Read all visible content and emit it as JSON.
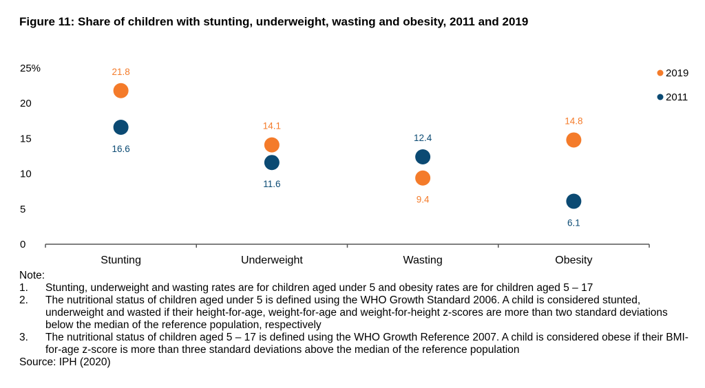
{
  "title": "Figure 11: Share of children with stunting, underweight, wasting and obesity, 2011 and 2019",
  "colors": {
    "series_2019": "#F47B2A",
    "series_2011": "#0B4A73",
    "axis": "#555555"
  },
  "chart_data": {
    "type": "scatter",
    "categories": [
      "Stunting",
      "Underweight",
      "Wasting",
      "Obesity"
    ],
    "series": [
      {
        "name": "2019",
        "values": [
          21.8,
          14.1,
          9.4,
          14.8
        ],
        "labels": [
          "21.8",
          "14.1",
          "9.4",
          "14.8"
        ]
      },
      {
        "name": "2011",
        "values": [
          16.6,
          11.6,
          12.4,
          6.1
        ],
        "labels": [
          "16.6",
          "11.6",
          "12.4",
          "6.1"
        ]
      }
    ],
    "yticks": [
      "25%",
      "20",
      "15",
      "10",
      "5",
      "0"
    ],
    "ytick_values": [
      25,
      20,
      15,
      10,
      5,
      0
    ],
    "ylim": [
      0,
      25
    ],
    "legend": [
      "2019",
      "2011"
    ],
    "legend_position": "top-right"
  },
  "notes": {
    "heading": "Note:",
    "items": [
      {
        "num": "1.",
        "text": "Stunting, underweight and wasting rates are for children aged under 5 and obesity rates are for children aged 5 – 17"
      },
      {
        "num": "2.",
        "text": "The nutritional status of children aged under 5 is defined using the WHO Growth Standard 2006. A child is considered stunted, underweight and wasted if their height-for-age, weight-for-age and weight-for-height z-scores are more than two standard deviations below the median of the reference population, respectively"
      },
      {
        "num": "3.",
        "text": "The nutritional status of children aged 5 – 17 is defined using the WHO Growth Reference 2007. A child is considered obese if their BMI-for-age z-score is more than three standard deviations above the median of the reference population"
      }
    ],
    "source": "Source: IPH (2020)"
  }
}
